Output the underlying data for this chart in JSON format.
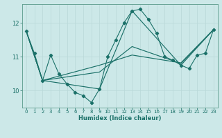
{
  "xlabel": "Humidex (Indice chaleur)",
  "background_color": "#cce8e8",
  "grid_color": "#b8d8d8",
  "line_color": "#1a7068",
  "xlim": [
    -0.5,
    23.5
  ],
  "ylim": [
    9.5,
    12.55
  ],
  "yticks": [
    10,
    11,
    12
  ],
  "xticks": [
    0,
    1,
    2,
    3,
    4,
    5,
    6,
    7,
    8,
    9,
    10,
    11,
    12,
    13,
    14,
    15,
    16,
    17,
    18,
    19,
    20,
    21,
    22,
    23
  ],
  "main_line": {
    "x": [
      0,
      1,
      2,
      3,
      4,
      5,
      6,
      7,
      8,
      9,
      10,
      11,
      12,
      13,
      14,
      15,
      16,
      17,
      18,
      19,
      20,
      21,
      22,
      23
    ],
    "y": [
      11.75,
      11.1,
      10.3,
      11.05,
      10.5,
      10.2,
      9.95,
      9.85,
      9.65,
      10.05,
      11.0,
      11.5,
      12.0,
      12.35,
      12.4,
      12.1,
      11.7,
      11.0,
      10.9,
      10.75,
      10.65,
      11.05,
      11.1,
      11.8
    ]
  },
  "smooth_lines": [
    {
      "x": [
        0,
        2,
        9,
        13,
        19,
        23
      ],
      "y": [
        11.75,
        10.3,
        10.05,
        12.35,
        10.75,
        11.8
      ]
    },
    {
      "x": [
        0,
        2,
        9,
        13,
        19,
        23
      ],
      "y": [
        11.75,
        10.3,
        10.55,
        11.3,
        10.8,
        11.8
      ]
    },
    {
      "x": [
        0,
        2,
        9,
        13,
        19,
        23
      ],
      "y": [
        11.75,
        10.3,
        10.75,
        11.05,
        10.82,
        11.8
      ]
    }
  ]
}
